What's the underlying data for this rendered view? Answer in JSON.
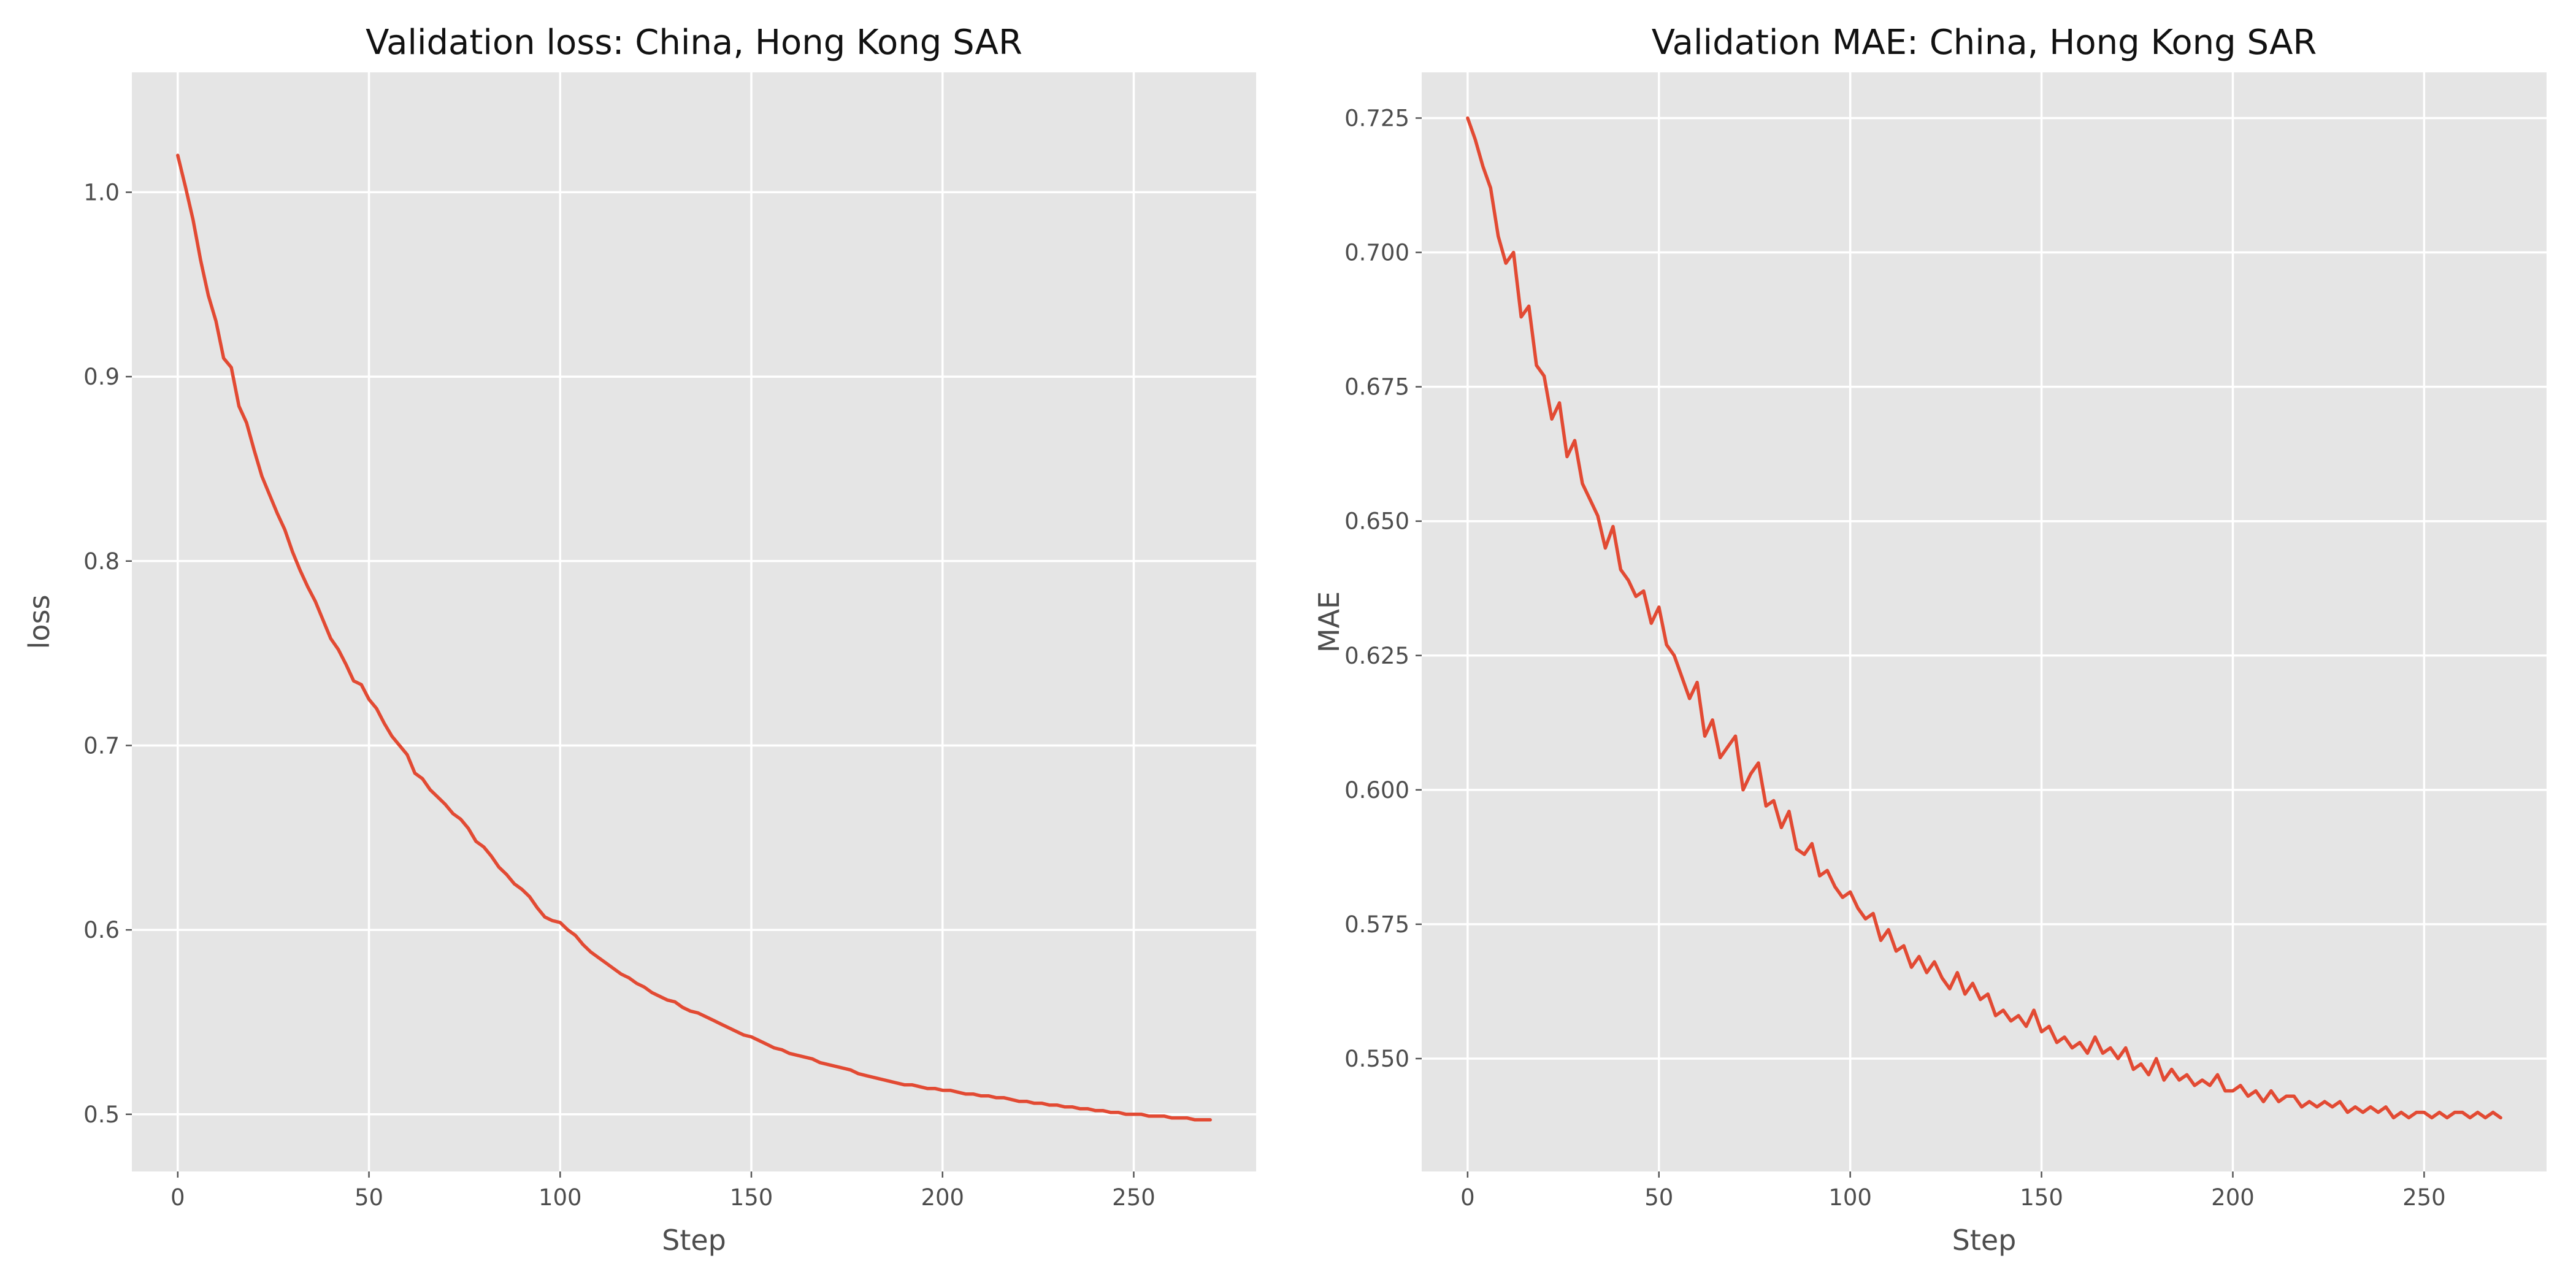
{
  "figure": {
    "background": "#ffffff",
    "panel_background": "#e5e5e5",
    "grid_color": "#ffffff"
  },
  "chart_data": [
    {
      "type": "line",
      "title": "Validation loss: China, Hong Kong SAR",
      "xlabel": "Step",
      "ylabel": "loss",
      "xlim": [
        -12,
        282
      ],
      "ylim": [
        0.469,
        1.065
      ],
      "xticks": [
        0,
        50,
        100,
        150,
        200,
        250
      ],
      "yticks": [
        0.5,
        0.6,
        0.7,
        0.8,
        0.9,
        1.0
      ],
      "ytick_labels": [
        "0.5",
        "0.6",
        "0.7",
        "0.8",
        "0.9",
        "1.0"
      ],
      "grid": true,
      "legend": "none",
      "series": [
        {
          "color": "#e24a33",
          "x": [
            0,
            2,
            4,
            6,
            8,
            10,
            12,
            14,
            16,
            18,
            20,
            22,
            24,
            26,
            28,
            30,
            32,
            34,
            36,
            38,
            40,
            42,
            44,
            46,
            48,
            50,
            52,
            54,
            56,
            58,
            60,
            62,
            64,
            66,
            68,
            70,
            72,
            74,
            76,
            78,
            80,
            82,
            84,
            86,
            88,
            90,
            92,
            94,
            96,
            98,
            100,
            102,
            104,
            106,
            108,
            110,
            112,
            114,
            116,
            118,
            120,
            122,
            124,
            126,
            128,
            130,
            132,
            134,
            136,
            138,
            140,
            142,
            144,
            146,
            148,
            150,
            152,
            154,
            156,
            158,
            160,
            162,
            164,
            166,
            168,
            170,
            172,
            174,
            176,
            178,
            180,
            182,
            184,
            186,
            188,
            190,
            192,
            194,
            196,
            198,
            200,
            202,
            204,
            206,
            208,
            210,
            212,
            214,
            216,
            218,
            220,
            222,
            224,
            226,
            228,
            230,
            232,
            234,
            236,
            238,
            240,
            242,
            244,
            246,
            248,
            250,
            252,
            254,
            256,
            258,
            260,
            262,
            264,
            266,
            268,
            270
          ],
          "y": [
            1.02,
            1.003,
            0.985,
            0.963,
            0.944,
            0.93,
            0.91,
            0.905,
            0.884,
            0.875,
            0.86,
            0.846,
            0.836,
            0.826,
            0.817,
            0.805,
            0.795,
            0.786,
            0.778,
            0.768,
            0.758,
            0.752,
            0.744,
            0.735,
            0.733,
            0.725,
            0.72,
            0.712,
            0.705,
            0.7,
            0.695,
            0.685,
            0.682,
            0.676,
            0.672,
            0.668,
            0.663,
            0.66,
            0.655,
            0.648,
            0.645,
            0.64,
            0.634,
            0.63,
            0.625,
            0.622,
            0.618,
            0.612,
            0.607,
            0.605,
            0.604,
            0.6,
            0.597,
            0.592,
            0.588,
            0.585,
            0.582,
            0.579,
            0.576,
            0.574,
            0.571,
            0.569,
            0.566,
            0.564,
            0.562,
            0.561,
            0.558,
            0.556,
            0.555,
            0.553,
            0.551,
            0.549,
            0.547,
            0.545,
            0.543,
            0.542,
            0.54,
            0.538,
            0.536,
            0.535,
            0.533,
            0.532,
            0.531,
            0.53,
            0.528,
            0.527,
            0.526,
            0.525,
            0.524,
            0.522,
            0.521,
            0.52,
            0.519,
            0.518,
            0.517,
            0.516,
            0.516,
            0.515,
            0.514,
            0.514,
            0.513,
            0.513,
            0.512,
            0.511,
            0.511,
            0.51,
            0.51,
            0.509,
            0.509,
            0.508,
            0.507,
            0.507,
            0.506,
            0.506,
            0.505,
            0.505,
            0.504,
            0.504,
            0.503,
            0.503,
            0.502,
            0.502,
            0.501,
            0.501,
            0.5,
            0.5,
            0.5,
            0.499,
            0.499,
            0.499,
            0.498,
            0.498,
            0.498,
            0.497,
            0.497,
            0.497
          ]
        }
      ]
    },
    {
      "type": "line",
      "title": "Validation MAE: China, Hong Kong SAR",
      "xlabel": "Step",
      "ylabel": "MAE",
      "xlim": [
        -12,
        282
      ],
      "ylim": [
        0.529,
        0.7335
      ],
      "xticks": [
        0,
        50,
        100,
        150,
        200,
        250
      ],
      "yticks": [
        0.55,
        0.575,
        0.6,
        0.625,
        0.65,
        0.675,
        0.7,
        0.725
      ],
      "ytick_labels": [
        "0.550",
        "0.575",
        "0.600",
        "0.625",
        "0.650",
        "0.675",
        "0.700",
        "0.725"
      ],
      "grid": true,
      "legend": "none",
      "series": [
        {
          "color": "#e24a33",
          "x": [
            0,
            2,
            4,
            6,
            8,
            10,
            12,
            14,
            16,
            18,
            20,
            22,
            24,
            26,
            28,
            30,
            32,
            34,
            36,
            38,
            40,
            42,
            44,
            46,
            48,
            50,
            52,
            54,
            56,
            58,
            60,
            62,
            64,
            66,
            68,
            70,
            72,
            74,
            76,
            78,
            80,
            82,
            84,
            86,
            88,
            90,
            92,
            94,
            96,
            98,
            100,
            102,
            104,
            106,
            108,
            110,
            112,
            114,
            116,
            118,
            120,
            122,
            124,
            126,
            128,
            130,
            132,
            134,
            136,
            138,
            140,
            142,
            144,
            146,
            148,
            150,
            152,
            154,
            156,
            158,
            160,
            162,
            164,
            166,
            168,
            170,
            172,
            174,
            176,
            178,
            180,
            182,
            184,
            186,
            188,
            190,
            192,
            194,
            196,
            198,
            200,
            202,
            204,
            206,
            208,
            210,
            212,
            214,
            216,
            218,
            220,
            222,
            224,
            226,
            228,
            230,
            232,
            234,
            236,
            238,
            240,
            242,
            244,
            246,
            248,
            250,
            252,
            254,
            256,
            258,
            260,
            262,
            264,
            266,
            268,
            270
          ],
          "y": [
            0.725,
            0.721,
            0.716,
            0.712,
            0.703,
            0.698,
            0.7,
            0.688,
            0.69,
            0.679,
            0.677,
            0.669,
            0.672,
            0.662,
            0.665,
            0.657,
            0.654,
            0.651,
            0.645,
            0.649,
            0.641,
            0.639,
            0.636,
            0.637,
            0.631,
            0.634,
            0.627,
            0.625,
            0.621,
            0.617,
            0.62,
            0.61,
            0.613,
            0.606,
            0.608,
            0.61,
            0.6,
            0.603,
            0.605,
            0.597,
            0.598,
            0.593,
            0.596,
            0.589,
            0.588,
            0.59,
            0.584,
            0.585,
            0.582,
            0.58,
            0.581,
            0.578,
            0.576,
            0.577,
            0.572,
            0.574,
            0.57,
            0.571,
            0.567,
            0.569,
            0.566,
            0.568,
            0.565,
            0.563,
            0.566,
            0.562,
            0.564,
            0.561,
            0.562,
            0.558,
            0.559,
            0.557,
            0.558,
            0.556,
            0.559,
            0.555,
            0.556,
            0.553,
            0.554,
            0.552,
            0.553,
            0.551,
            0.554,
            0.551,
            0.552,
            0.55,
            0.552,
            0.548,
            0.549,
            0.547,
            0.55,
            0.546,
            0.548,
            0.546,
            0.547,
            0.545,
            0.546,
            0.545,
            0.547,
            0.544,
            0.544,
            0.545,
            0.543,
            0.544,
            0.542,
            0.544,
            0.542,
            0.543,
            0.543,
            0.541,
            0.542,
            0.541,
            0.542,
            0.541,
            0.542,
            0.54,
            0.541,
            0.54,
            0.541,
            0.54,
            0.541,
            0.539,
            0.54,
            0.539,
            0.54,
            0.54,
            0.539,
            0.54,
            0.539,
            0.54,
            0.54,
            0.539,
            0.54,
            0.539,
            0.54,
            0.539
          ]
        }
      ]
    }
  ]
}
